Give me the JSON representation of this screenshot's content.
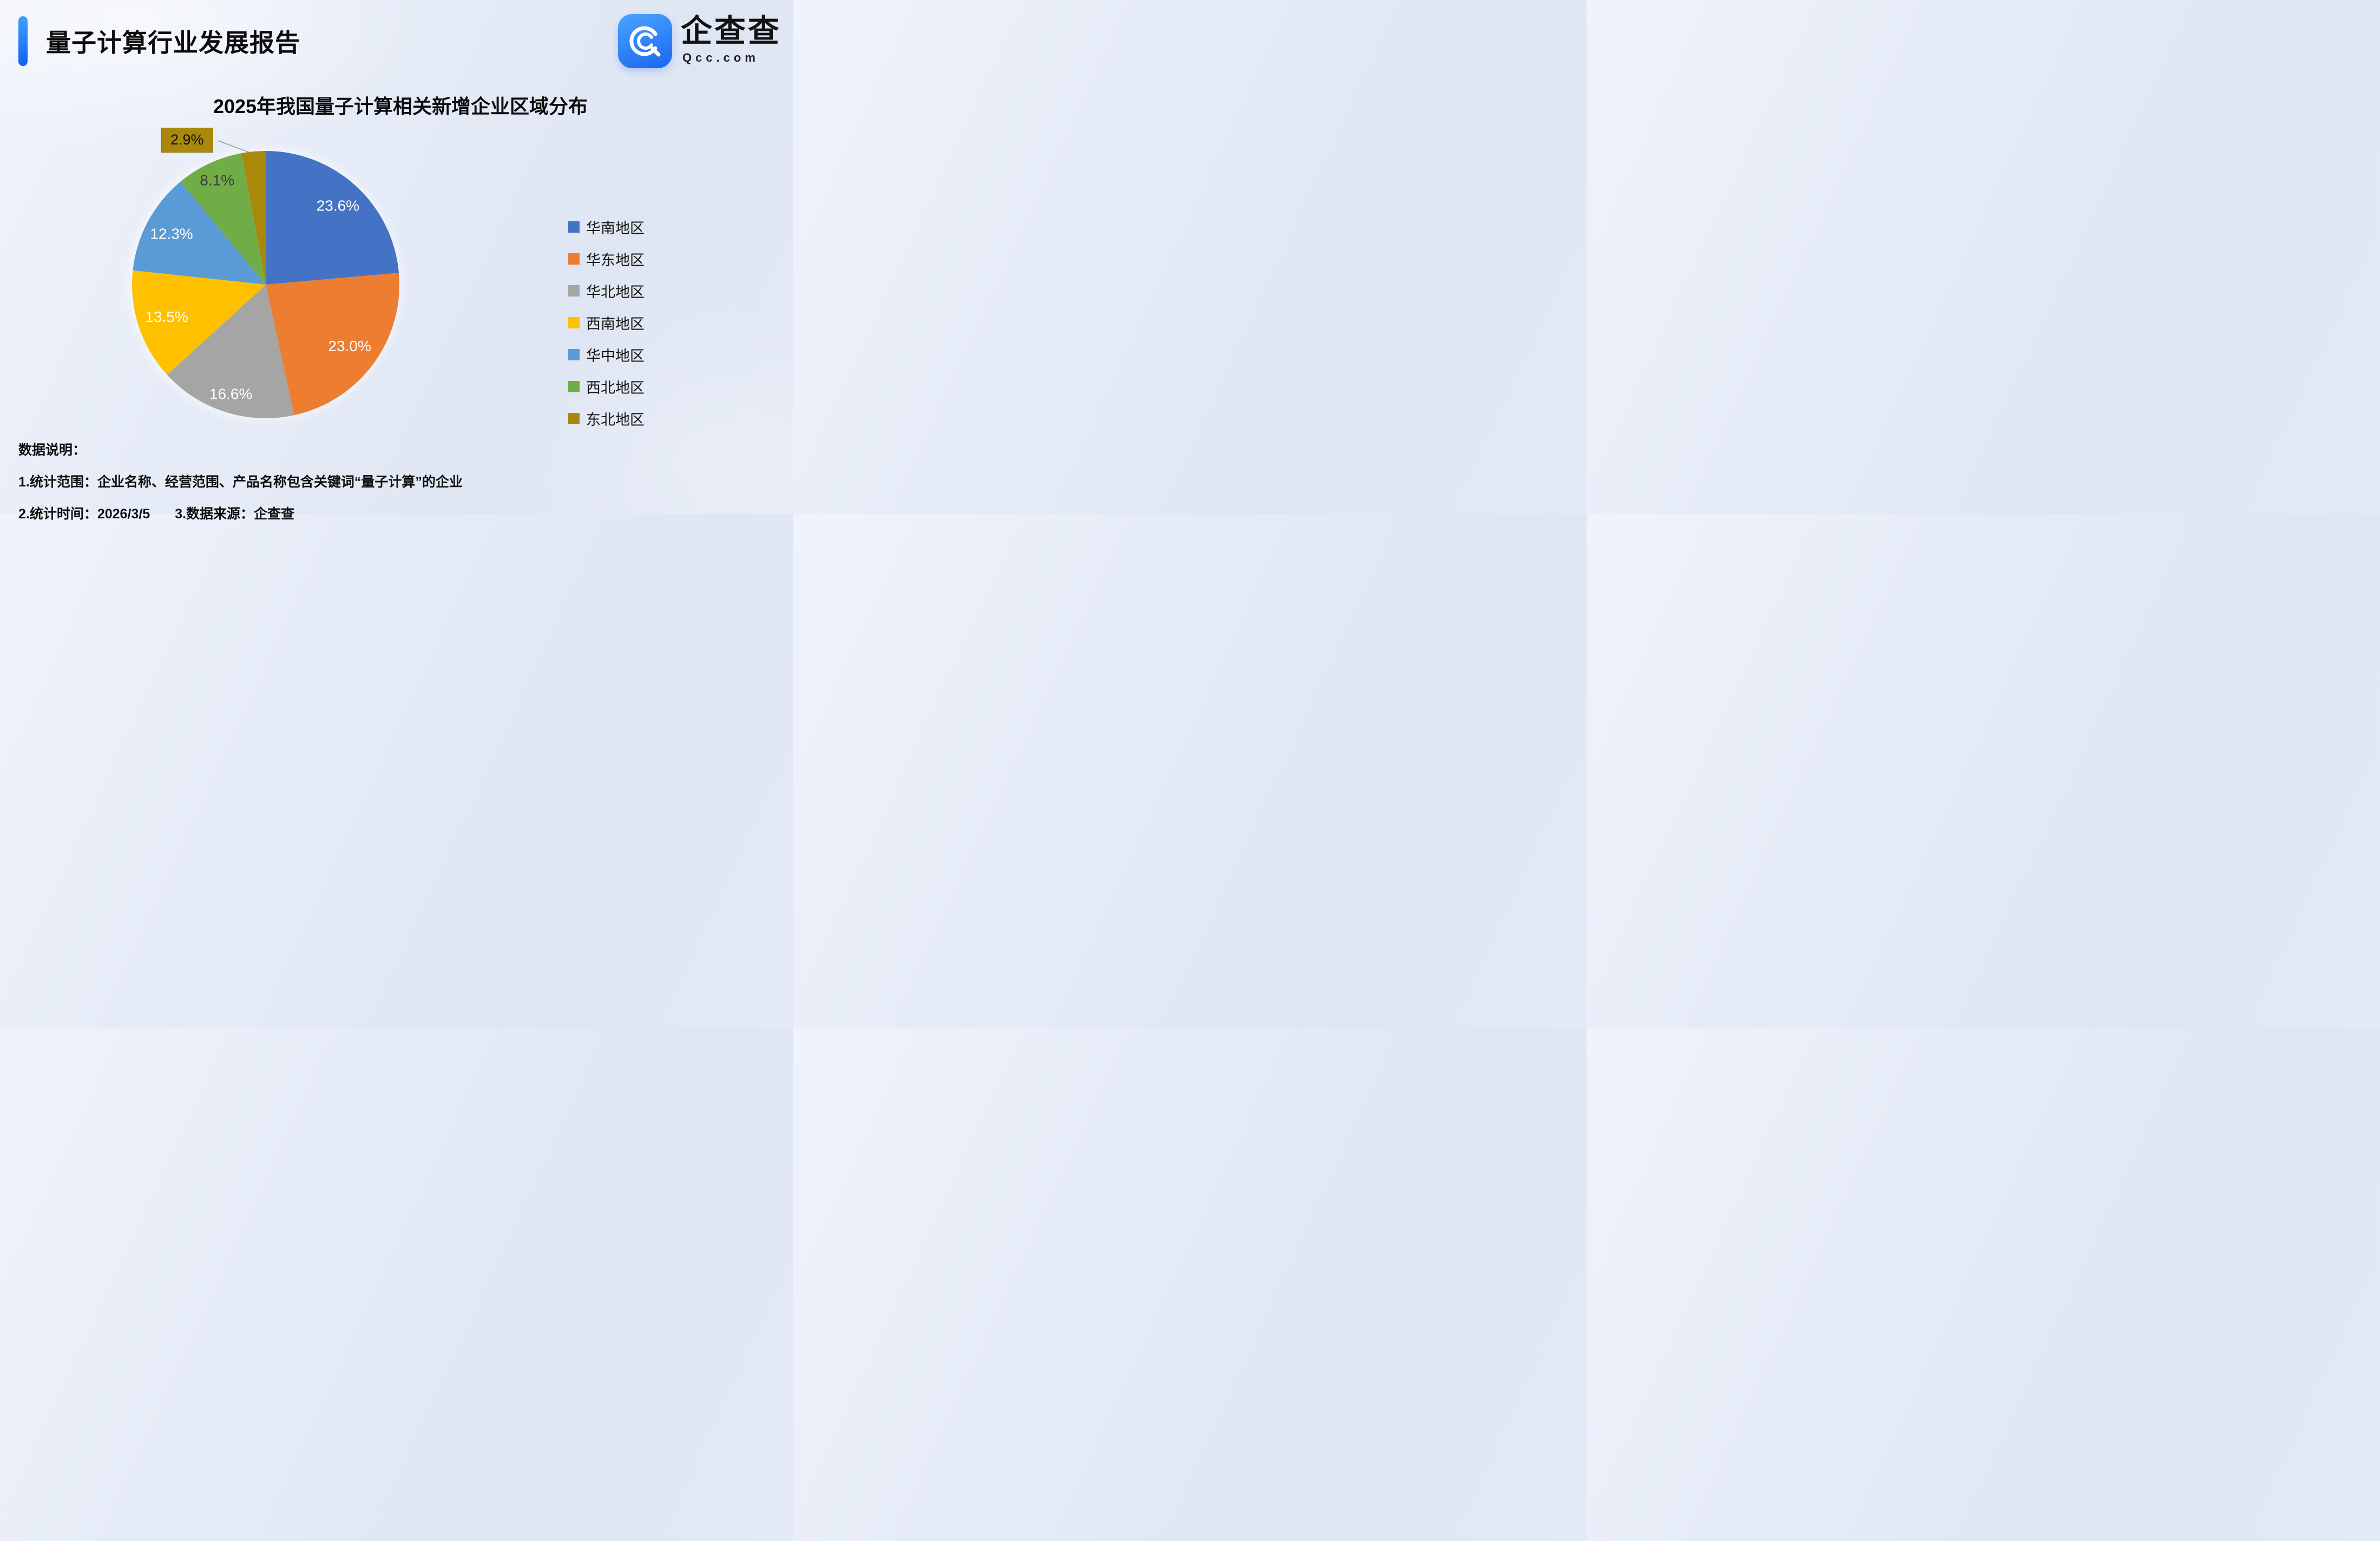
{
  "header": {
    "title": "量子计算行业发展报告"
  },
  "logo": {
    "name": "企查查",
    "domain": "Qcc.com",
    "brand_color": "#1b66f2"
  },
  "chart_data": {
    "type": "pie",
    "title": "2025年我国量子计算相关新增企业区域分布",
    "categories": [
      "华南地区",
      "华东地区",
      "华北地区",
      "西南地区",
      "华中地区",
      "西北地区",
      "东北地区"
    ],
    "values": [
      23.6,
      23.0,
      16.6,
      13.5,
      12.3,
      8.1,
      2.9
    ],
    "unit": "%",
    "colors": [
      "#4472C4",
      "#ED7D31",
      "#A5A5A5",
      "#FFC000",
      "#5B9BD5",
      "#70AD47",
      "#A9880B"
    ],
    "legend_position": "right",
    "start_angle_deg": 0,
    "direction": "clockwise",
    "label_style": "percent-inside",
    "callout_slice": "东北地区"
  },
  "notes": {
    "heading": "数据说明：",
    "line1": "1.统计范围：企业名称、经营范围、产品名称包含关键词“量子计算”的企业",
    "line2a": "2.统计时间：2026/3/5",
    "line2b": "3.数据来源：企查查"
  }
}
